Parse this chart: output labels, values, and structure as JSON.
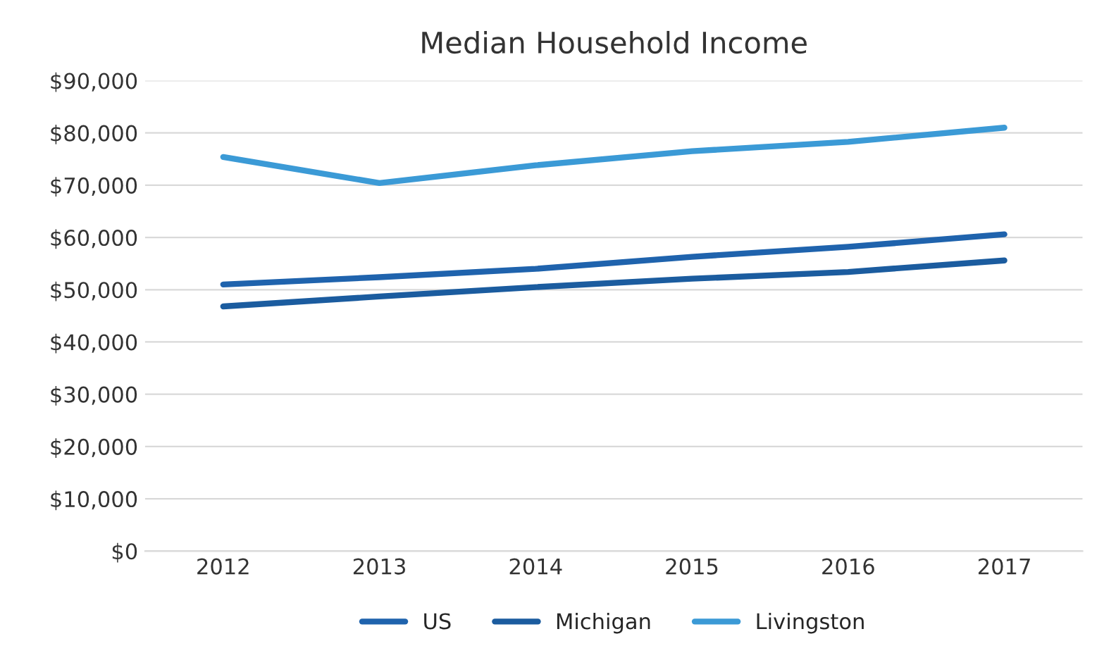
{
  "chart_data": {
    "type": "line",
    "title": "Median Household Income",
    "categories": [
      "2012",
      "2013",
      "2014",
      "2015",
      "2016",
      "2017"
    ],
    "series": [
      {
        "name": "US",
        "color": "#1f63ad",
        "values": [
          51000,
          52400,
          54000,
          56300,
          58200,
          60600
        ]
      },
      {
        "name": "Michigan",
        "color": "#1b5c9f",
        "values": [
          46800,
          48700,
          50500,
          52100,
          53400,
          55600
        ]
      },
      {
        "name": "Livingston",
        "color": "#3b9ad6",
        "values": [
          75400,
          70400,
          73800,
          76500,
          78300,
          81000
        ]
      }
    ],
    "ylim": [
      0,
      90000
    ],
    "yticks": [
      {
        "value": 0,
        "label": "$0"
      },
      {
        "value": 10000,
        "label": "$10,000"
      },
      {
        "value": 20000,
        "label": "$20,000"
      },
      {
        "value": 30000,
        "label": "$30,000"
      },
      {
        "value": 40000,
        "label": "$40,000"
      },
      {
        "value": 50000,
        "label": "$50,000"
      },
      {
        "value": 60000,
        "label": "$60,000"
      },
      {
        "value": 70000,
        "label": "$70,000"
      },
      {
        "value": 80000,
        "label": "$80,000"
      },
      {
        "value": 90000,
        "label": "$90,000"
      }
    ],
    "grid": "y",
    "legend": "bottom",
    "marker": "none",
    "line_style": "solid"
  }
}
